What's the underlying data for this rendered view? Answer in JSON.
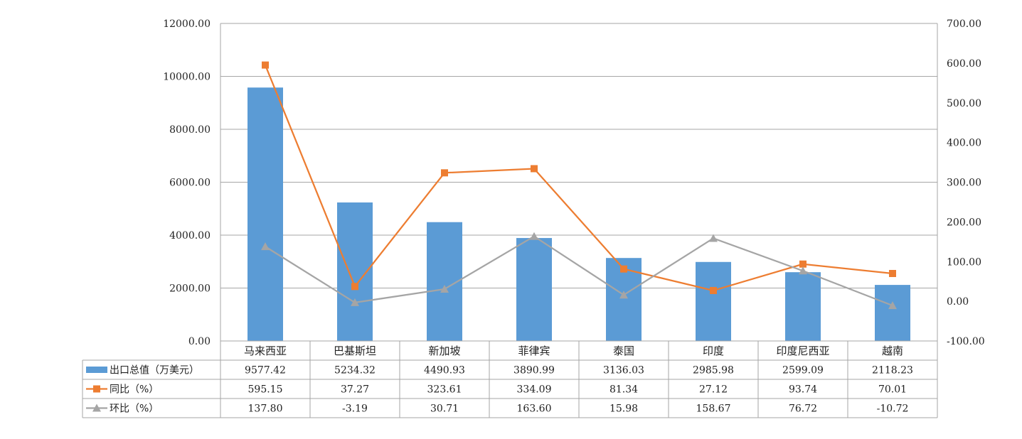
{
  "chart_data": {
    "type": "bar",
    "categories": [
      "马来西亚",
      "巴基斯坦",
      "新加坡",
      "菲律宾",
      "泰国",
      "印度",
      "印度尼西亚",
      "越南"
    ],
    "series": [
      {
        "name": "出口总值（万美元）",
        "type": "bar",
        "axis": "left",
        "color": "#5b9bd5",
        "values": [
          9577.42,
          5234.32,
          4490.93,
          3890.99,
          3136.03,
          2985.98,
          2599.09,
          2118.23
        ]
      },
      {
        "name": "同比（%）",
        "type": "line",
        "axis": "right",
        "color": "#ed7d31",
        "marker": "square",
        "values": [
          595.15,
          37.27,
          323.61,
          334.09,
          81.34,
          27.12,
          93.74,
          70.01
        ]
      },
      {
        "name": "环比（%）",
        "type": "line",
        "axis": "right",
        "color": "#a5a5a5",
        "marker": "triangle",
        "values": [
          137.8,
          -3.19,
          30.71,
          163.6,
          15.98,
          158.67,
          76.72,
          -10.72
        ]
      }
    ],
    "ylim_left": [
      0,
      12000
    ],
    "yticks_left": [
      "0.00",
      "2000.00",
      "4000.00",
      "6000.00",
      "8000.00",
      "10000.00",
      "12000.00"
    ],
    "ylim_right": [
      -100,
      700
    ],
    "yticks_right": [
      "-100.00",
      "0.00",
      "100.00",
      "200.00",
      "300.00",
      "400.00",
      "500.00",
      "600.00",
      "700.00"
    ],
    "grid": true,
    "legend": "data-table-bottom",
    "data_table": true,
    "title": "",
    "xlabel": "",
    "ylabel": ""
  }
}
